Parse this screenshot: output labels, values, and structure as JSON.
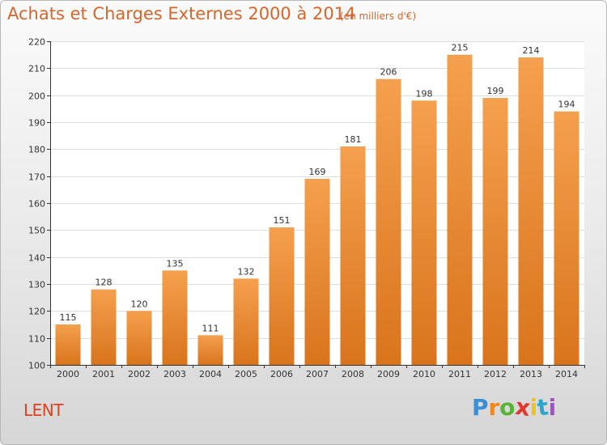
{
  "header": {
    "title": "Achats et Charges Externes 2000 à 2014",
    "subtitle": "(en milliers d'€)"
  },
  "footer": {
    "place": "LENT",
    "logo_text": "Proxiti",
    "logo_colors": [
      "#3a8fd6",
      "#f08a1c",
      "#57b535",
      "#e2352b",
      "#f0c419",
      "#2aa6c9",
      "#9b59b6"
    ]
  },
  "colors": {
    "bar_top": "#f5a04e",
    "bar_bottom": "#d9741c",
    "grid": "#dddddd",
    "axis": "#333333"
  },
  "chart_data": {
    "type": "bar",
    "categories": [
      "2000",
      "2001",
      "2002",
      "2003",
      "2004",
      "2005",
      "2006",
      "2007",
      "2008",
      "2009",
      "2010",
      "2011",
      "2012",
      "2013",
      "2014"
    ],
    "values": [
      115,
      128,
      120,
      135,
      111,
      132,
      151,
      169,
      181,
      206,
      198,
      215,
      199,
      214,
      194
    ],
    "ylim": [
      100,
      220
    ],
    "yticks": [
      100,
      110,
      120,
      130,
      140,
      150,
      160,
      170,
      180,
      190,
      200,
      210,
      220
    ],
    "grid": true,
    "data_labels": true
  }
}
